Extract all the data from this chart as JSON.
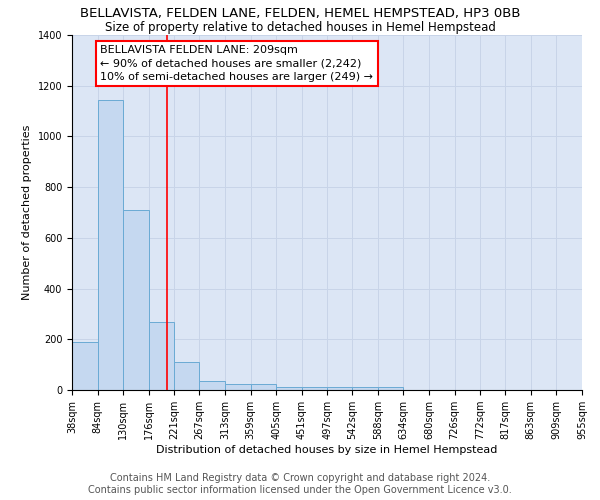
{
  "title": "BELLAVISTA, FELDEN LANE, FELDEN, HEMEL HEMPSTEAD, HP3 0BB",
  "subtitle": "Size of property relative to detached houses in Hemel Hempstead",
  "xlabel": "Distribution of detached houses by size in Hemel Hempstead",
  "ylabel": "Number of detached properties",
  "footer_line1": "Contains HM Land Registry data © Crown copyright and database right 2024.",
  "footer_line2": "Contains public sector information licensed under the Open Government Licence v3.0.",
  "bin_edges": [
    38,
    84,
    130,
    176,
    221,
    267,
    313,
    359,
    405,
    451,
    497,
    542,
    588,
    634,
    680,
    726,
    772,
    817,
    863,
    909,
    955
  ],
  "bar_heights": [
    190,
    1145,
    710,
    270,
    110,
    35,
    25,
    25,
    12,
    12,
    12,
    12,
    12,
    0,
    0,
    0,
    0,
    0,
    0,
    0
  ],
  "bar_color": "#c5d8f0",
  "bar_edge_color": "#6aaad4",
  "grid_color": "#c8d4e8",
  "bg_color": "#dce6f5",
  "red_line_x": 209,
  "annotation_text": "BELLAVISTA FELDEN LANE: 209sqm\n← 90% of detached houses are smaller (2,242)\n10% of semi-detached houses are larger (249) →",
  "ylim": [
    0,
    1400
  ],
  "yticks": [
    0,
    200,
    400,
    600,
    800,
    1000,
    1200,
    1400
  ],
  "title_fontsize": 9.5,
  "subtitle_fontsize": 8.5,
  "axis_fontsize": 8,
  "tick_fontsize": 7,
  "footer_fontsize": 7,
  "annot_fontsize": 8
}
